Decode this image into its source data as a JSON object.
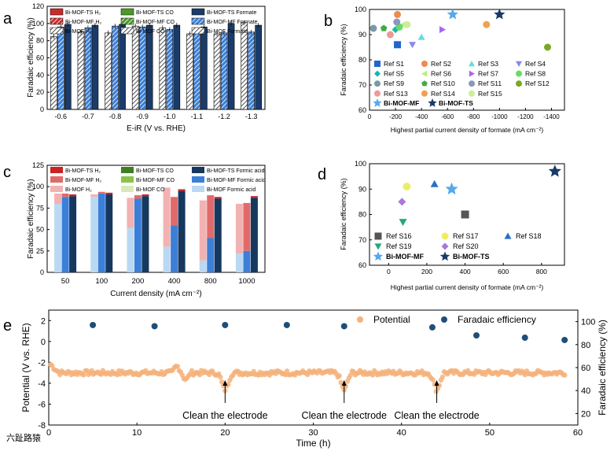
{
  "chart_data": [
    {
      "panel": "a",
      "type": "bar",
      "ylabel": "Faradaic efficiency (%)",
      "xlabel": "E-iR (V vs. RHE)",
      "categories": [
        "-0.6",
        "-0.7",
        "-0.8",
        "-0.9",
        "-1.0",
        "-1.1",
        "-1.2",
        "-1.3"
      ],
      "ylim": [
        0,
        120
      ],
      "yticks": [
        "0",
        "20",
        "40",
        "60",
        "80",
        "100",
        "120"
      ],
      "legend": [
        "Bi-MOF-TS H₂",
        "Bi-MOF-TS CO",
        "Bi-MOF-TS Formate",
        "Bi-MOF-MF H₂",
        "Bi-MOF-MF CO",
        "Bi-MOF-MF Formate",
        "Bi-MOF H₂",
        "Bi-MOF CO",
        "Bi-MOF Formate"
      ],
      "series": [
        {
          "name": "Bi-MOF Formate",
          "values": [
            85,
            90,
            89,
            97,
            95,
            88,
            88,
            101
          ]
        },
        {
          "name": "Bi-MOF-MF Formate",
          "values": [
            96,
            95,
            97,
            96,
            93,
            93,
            89,
            90
          ]
        },
        {
          "name": "Bi-MOF-TS Formate",
          "values": [
            99,
            98,
            99,
            98,
            98,
            96,
            100,
            98
          ]
        }
      ]
    },
    {
      "panel": "b",
      "type": "scatter",
      "ylabel": "Faradaic efficiency (%)",
      "xlabel": "Highest partial current density of formate (mA cm⁻²)",
      "xlim": [
        0,
        -1500
      ],
      "ylim": [
        60,
        100
      ],
      "xticks": [
        "0",
        "-200",
        "-400",
        "-600",
        "-800",
        "-1000",
        "-1200",
        "-1400"
      ],
      "yticks": [
        "60",
        "70",
        "80",
        "90",
        "100"
      ],
      "legend": [
        "Ref S1",
        "Ref S2",
        "Ref S3",
        "Ref S4",
        "Ref S5",
        "Ref S6",
        "Ref S7",
        "Ref S8",
        "Ref S9",
        "Ref S10",
        "Ref S11",
        "Ref S12",
        "Ref S13",
        "Ref S14",
        "Ref S15",
        "Bi-MOF-MF",
        "Bi-MOF-TS"
      ],
      "points": [
        {
          "x": -215,
          "y": 86,
          "marker": "square",
          "color": "#2266cc"
        },
        {
          "x": -215,
          "y": 98,
          "marker": "circle",
          "color": "#f08a4b"
        },
        {
          "x": -400,
          "y": 89,
          "marker": "triangle",
          "color": "#66dddd"
        },
        {
          "x": -330,
          "y": 86,
          "marker": "tri-down",
          "color": "#8888ee"
        },
        {
          "x": -200,
          "y": 92,
          "marker": "diamond",
          "color": "#11bbaa"
        },
        {
          "x": -260,
          "y": 94,
          "marker": "tri-left",
          "color": "#bbee77"
        },
        {
          "x": -560,
          "y": 92,
          "marker": "tri-right",
          "color": "#aa66ee"
        },
        {
          "x": -230,
          "y": 93,
          "marker": "circle",
          "color": "#66dd66"
        },
        {
          "x": -30,
          "y": 92.5,
          "marker": "circle",
          "color": "#7799aa"
        },
        {
          "x": -110,
          "y": 92.5,
          "marker": "pentagon",
          "color": "#44aa44"
        },
        {
          "x": -210,
          "y": 95,
          "marker": "circle",
          "color": "#8899bb"
        },
        {
          "x": -1370,
          "y": 85,
          "marker": "circle",
          "color": "#77aa22"
        },
        {
          "x": -160,
          "y": 90,
          "marker": "circle",
          "color": "#ee9999"
        },
        {
          "x": -900,
          "y": 94,
          "marker": "circle",
          "color": "#f0a050"
        },
        {
          "x": -290,
          "y": 94,
          "marker": "circle",
          "color": "#ccee99"
        },
        {
          "x": -640,
          "y": 98,
          "marker": "star",
          "color": "#55aaee"
        },
        {
          "x": -1000,
          "y": 98,
          "marker": "star",
          "color": "#1a3a66"
        }
      ]
    },
    {
      "panel": "c",
      "type": "bar",
      "ylabel": "Faradaic efficiency (%)",
      "xlabel": "Current density (mA cm⁻²)",
      "categories": [
        "50",
        "100",
        "200",
        "400",
        "800",
        "1000"
      ],
      "ylim": [
        0,
        125
      ],
      "yticks": [
        "0",
        "25",
        "50",
        "75",
        "100",
        "125"
      ],
      "legend": [
        "Bi-MOF-TS H₂",
        "Bi-MOF-TS CO",
        "Bi-MOF-TS Formic acid",
        "Bi-MOF-MF H₂",
        "Bi-MOF-MF CO",
        "Bi-MOF-MF Formic acid",
        "Bi-MOF H₂",
        "Bi-MOF CO",
        "Bi-MOF Formic acid"
      ],
      "series": [
        {
          "name": "Bi-MOF Formic acid",
          "values": [
            80,
            88,
            52,
            30,
            14,
            22
          ]
        },
        {
          "name": "Bi-MOF H₂",
          "values": [
            12,
            3,
            35,
            69,
            70,
            58
          ]
        },
        {
          "name": "Bi-MOF-MF Formic acid",
          "values": [
            88,
            92,
            86,
            55,
            40,
            25
          ]
        },
        {
          "name": "Bi-MOF-MF H₂",
          "values": [
            4,
            2,
            4,
            33,
            50,
            56
          ]
        },
        {
          "name": "Bi-MOF-TS Formic acid",
          "values": [
            89,
            91,
            89,
            95,
            86,
            87
          ]
        },
        {
          "name": "Bi-MOF-TS H₂",
          "values": [
            2,
            2,
            2,
            2,
            2,
            2
          ]
        }
      ]
    },
    {
      "panel": "d",
      "type": "scatter",
      "ylabel": "Faradaic efficiency (%)",
      "xlabel": "Highest partial current density of formate (mA cm⁻²)",
      "xlim": [
        -100,
        920
      ],
      "ylim": [
        60,
        100
      ],
      "xticks": [
        "0",
        "200",
        "400",
        "600",
        "800"
      ],
      "yticks": [
        "60",
        "70",
        "80",
        "90",
        "100"
      ],
      "legend": [
        "Ref S16",
        "Ref S17",
        "Ref S18",
        "Ref S19",
        "Ref S20",
        "Bi-MOF-MF",
        "Bi-MOF-TS"
      ],
      "points": [
        {
          "x": 400,
          "y": 80,
          "marker": "square",
          "color": "#555555"
        },
        {
          "x": 95,
          "y": 91,
          "marker": "circle",
          "color": "#eeee66"
        },
        {
          "x": 240,
          "y": 92,
          "marker": "triangle",
          "color": "#2a6ec8"
        },
        {
          "x": 75,
          "y": 77,
          "marker": "tri-down",
          "color": "#22aa77"
        },
        {
          "x": 70,
          "y": 85,
          "marker": "diamond",
          "color": "#aa77dd"
        },
        {
          "x": 330,
          "y": 90,
          "marker": "star",
          "color": "#55aaee"
        },
        {
          "x": 870,
          "y": 97,
          "marker": "star",
          "color": "#1a3a66"
        }
      ]
    },
    {
      "panel": "e",
      "type": "line",
      "xlabel": "Time (h)",
      "ylabel": "Potential (V vs. RHE)",
      "ylabel_right": "Faradaic efficiency (%)",
      "xlim": [
        0,
        60
      ],
      "ylim": [
        -8,
        3
      ],
      "ylim_right": [
        10,
        110
      ],
      "xticks": [
        "0",
        "10",
        "20",
        "30",
        "40",
        "50",
        "60"
      ],
      "yticks": [
        "-8",
        "-6",
        "-4",
        "-2",
        "0",
        "2"
      ],
      "yticks_right": [
        "20",
        "40",
        "60",
        "80",
        "100"
      ],
      "legend": [
        "Potential",
        "Faradaic efficiency"
      ],
      "fe_points": [
        {
          "x": 5,
          "y": 97
        },
        {
          "x": 12,
          "y": 96
        },
        {
          "x": 20,
          "y": 97
        },
        {
          "x": 27,
          "y": 97
        },
        {
          "x": 33.5,
          "y": 96
        },
        {
          "x": 43.5,
          "y": 95
        },
        {
          "x": 48.5,
          "y": 88
        },
        {
          "x": 54,
          "y": 86
        },
        {
          "x": 58.5,
          "y": 84
        }
      ],
      "annotations": [
        "Clean the electrode",
        "Clean the electrode",
        "Clean the electrode"
      ],
      "annotation_x": [
        20,
        33.5,
        44
      ]
    }
  ],
  "panel_labels": [
    "a",
    "b",
    "c",
    "d",
    "e"
  ],
  "watermark": "六趾路猿"
}
